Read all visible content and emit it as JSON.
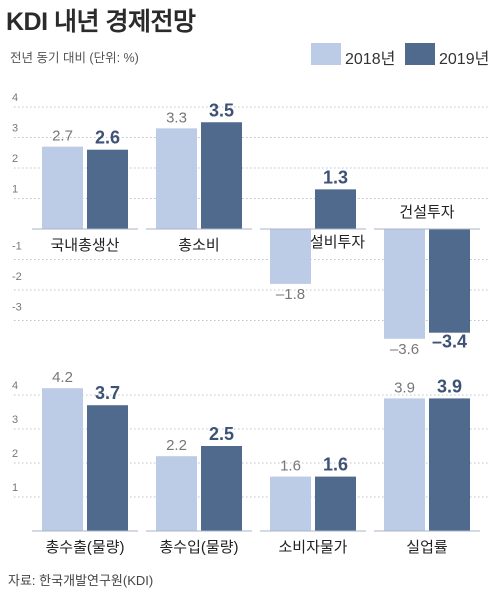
{
  "title": "KDI 내년 경제전망",
  "subtitle": "전년 동기 대비 (단위: %)",
  "legend": [
    {
      "label": "2018년",
      "color": "#bccbe6"
    },
    {
      "label": "2019년",
      "color": "#506a8e"
    }
  ],
  "source": "자료: 한국개발연구원(KDI)",
  "colors": {
    "y2018": "#bccbe6",
    "y2019": "#506a8e",
    "grid": "#b9c3d3",
    "axis": "#a9b6cb"
  },
  "chart_data": [
    {
      "type": "bar",
      "title": "",
      "grid": true,
      "legend_position": "top-right",
      "ytick_labels": [
        "4",
        "3",
        "2",
        "1",
        "-1",
        "-2",
        "-3"
      ],
      "ylim": [
        -3.6,
        4
      ],
      "categories": [
        "국내총생산",
        "총소비",
        "설비투자",
        "건설투자"
      ],
      "series": [
        {
          "name": "2018년",
          "values": [
            2.7,
            3.3,
            -1.8,
            -3.6
          ],
          "labels": [
            "2.7",
            "3.3",
            "–1.8",
            "–3.6"
          ]
        },
        {
          "name": "2019년",
          "values": [
            2.6,
            3.5,
            1.3,
            -3.4
          ],
          "labels": [
            "2.6",
            "3.5",
            "1.3",
            "–3.4"
          ]
        }
      ]
    },
    {
      "type": "bar",
      "title": "",
      "grid": true,
      "ytick_labels": [
        "4",
        "3",
        "2",
        "1"
      ],
      "ylim": [
        0,
        4.5
      ],
      "categories": [
        "총수출(물량)",
        "총수입(물량)",
        "소비자물가",
        "실업률"
      ],
      "series": [
        {
          "name": "2018년",
          "values": [
            4.2,
            2.2,
            1.6,
            3.9
          ],
          "labels": [
            "4.2",
            "2.2",
            "1.6",
            "3.9"
          ]
        },
        {
          "name": "2019년",
          "values": [
            3.7,
            2.5,
            1.6,
            3.9
          ],
          "labels": [
            "3.7",
            "2.5",
            "1.6",
            "3.9"
          ]
        }
      ]
    }
  ]
}
